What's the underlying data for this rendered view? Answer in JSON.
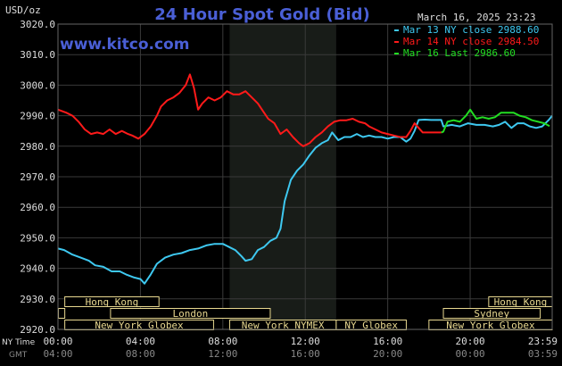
{
  "chart_data": {
    "type": "line",
    "title": "24 Hour Spot Gold (Bid)",
    "watermark": "www.kitco.com",
    "timestamp": "March 16, 2025 23:23",
    "units": "USD/oz",
    "ylim": [
      2920,
      3020
    ],
    "y_ticks": [
      "3020.0",
      "3010.0",
      "3000.0",
      "2990.0",
      "2980.0",
      "2970.0",
      "2960.0",
      "2950.0",
      "2940.0",
      "2930.0",
      "2920.0"
    ],
    "x_hours": [
      0,
      23.98
    ],
    "x_ticks": [
      {
        "h": 0,
        "ny": "00:00",
        "gmt": "04:00"
      },
      {
        "h": 4,
        "ny": "04:00",
        "gmt": "08:00"
      },
      {
        "h": 8,
        "ny": "08:00",
        "gmt": "12:00"
      },
      {
        "h": 12,
        "ny": "12:00",
        "gmt": "16:00"
      },
      {
        "h": 16,
        "ny": "16:00",
        "gmt": "20:00"
      },
      {
        "h": 20,
        "ny": "20:00",
        "gmt": "00:00"
      },
      {
        "h": 23.98,
        "ny": "23:59",
        "gmt": "03:59"
      }
    ],
    "x_row_labels": {
      "ny": "NY Time",
      "gmt": "GMT"
    },
    "shaded_session": [
      8.33,
      13.5
    ],
    "legend": [
      {
        "label": "Mar 13 NY close 2988.60",
        "color": "#3ec8f0"
      },
      {
        "label": "Mar 14 NY close 2984.50",
        "color": "#ff1a1a"
      },
      {
        "label": "Mar 16 Last 2986.60",
        "color": "#22dd22"
      }
    ],
    "series": [
      {
        "color": "#3ec8f0",
        "points": [
          [
            0,
            2946.5
          ],
          [
            0.3,
            2946
          ],
          [
            0.7,
            2944.5
          ],
          [
            1.1,
            2943.5
          ],
          [
            1.5,
            2942.5
          ],
          [
            1.8,
            2941
          ],
          [
            2.2,
            2940.5
          ],
          [
            2.6,
            2939
          ],
          [
            3.0,
            2939
          ],
          [
            3.3,
            2938
          ],
          [
            3.7,
            2937
          ],
          [
            4.0,
            2936.5
          ],
          [
            4.2,
            2935
          ],
          [
            4.5,
            2938
          ],
          [
            4.8,
            2941.5
          ],
          [
            5.2,
            2943.5
          ],
          [
            5.6,
            2944.5
          ],
          [
            6.0,
            2945
          ],
          [
            6.4,
            2946
          ],
          [
            6.8,
            2946.5
          ],
          [
            7.2,
            2947.5
          ],
          [
            7.6,
            2948
          ],
          [
            8.0,
            2948
          ],
          [
            8.3,
            2947
          ],
          [
            8.6,
            2946
          ],
          [
            8.9,
            2944
          ],
          [
            9.1,
            2942.5
          ],
          [
            9.4,
            2943
          ],
          [
            9.7,
            2946
          ],
          [
            10.0,
            2947
          ],
          [
            10.3,
            2949
          ],
          [
            10.6,
            2950
          ],
          [
            10.8,
            2953
          ],
          [
            11.0,
            2962
          ],
          [
            11.3,
            2969
          ],
          [
            11.6,
            2972
          ],
          [
            11.9,
            2974
          ],
          [
            12.2,
            2977
          ],
          [
            12.5,
            2979.5
          ],
          [
            12.8,
            2981
          ],
          [
            13.1,
            2982
          ],
          [
            13.3,
            2984.5
          ],
          [
            13.6,
            2982
          ],
          [
            13.9,
            2983
          ],
          [
            14.2,
            2983
          ],
          [
            14.5,
            2984
          ],
          [
            14.8,
            2983
          ],
          [
            15.1,
            2983.5
          ],
          [
            15.4,
            2983
          ],
          [
            15.7,
            2983
          ],
          [
            16.0,
            2982.5
          ],
          [
            16.3,
            2983
          ],
          [
            16.6,
            2983
          ],
          [
            16.9,
            2981.5
          ],
          [
            17.1,
            2982.5
          ],
          [
            17.3,
            2985
          ],
          [
            17.5,
            2988.6
          ],
          [
            17.8,
            2988.7
          ],
          [
            18.1,
            2988.6
          ],
          [
            18.4,
            2988.6
          ],
          [
            18.6,
            2988.6
          ],
          [
            18.7,
            2986.5
          ],
          [
            19.1,
            2987
          ],
          [
            19.5,
            2986.5
          ],
          [
            19.9,
            2987.5
          ],
          [
            20.3,
            2987
          ],
          [
            20.7,
            2987
          ],
          [
            21.1,
            2986.5
          ],
          [
            21.4,
            2987
          ],
          [
            21.7,
            2988
          ],
          [
            22.0,
            2986
          ],
          [
            22.3,
            2987.5
          ],
          [
            22.6,
            2987.5
          ],
          [
            22.9,
            2986.5
          ],
          [
            23.2,
            2986
          ],
          [
            23.5,
            2986.5
          ],
          [
            23.8,
            2988.5
          ],
          [
            23.98,
            2990
          ]
        ]
      },
      {
        "color": "#ff1a1a",
        "points": [
          [
            0,
            2992
          ],
          [
            0.4,
            2991
          ],
          [
            0.7,
            2990
          ],
          [
            1.0,
            2988
          ],
          [
            1.3,
            2985.5
          ],
          [
            1.6,
            2984
          ],
          [
            1.9,
            2984.5
          ],
          [
            2.2,
            2984
          ],
          [
            2.5,
            2985.5
          ],
          [
            2.8,
            2984
          ],
          [
            3.1,
            2985
          ],
          [
            3.4,
            2984
          ],
          [
            3.6,
            2983.5
          ],
          [
            3.9,
            2982.5
          ],
          [
            4.2,
            2984
          ],
          [
            4.5,
            2986.5
          ],
          [
            4.8,
            2990
          ],
          [
            5.0,
            2993
          ],
          [
            5.3,
            2995
          ],
          [
            5.6,
            2996
          ],
          [
            5.9,
            2997.5
          ],
          [
            6.2,
            3000
          ],
          [
            6.4,
            3003.5
          ],
          [
            6.6,
            2999
          ],
          [
            6.8,
            2992
          ],
          [
            7.0,
            2994
          ],
          [
            7.3,
            2996
          ],
          [
            7.6,
            2995
          ],
          [
            7.9,
            2996
          ],
          [
            8.2,
            2998
          ],
          [
            8.5,
            2997
          ],
          [
            8.8,
            2997
          ],
          [
            9.1,
            2998
          ],
          [
            9.4,
            2996
          ],
          [
            9.7,
            2994
          ],
          [
            9.9,
            2992
          ],
          [
            10.2,
            2989
          ],
          [
            10.5,
            2987.5
          ],
          [
            10.8,
            2984
          ],
          [
            11.1,
            2985.5
          ],
          [
            11.4,
            2983
          ],
          [
            11.7,
            2981
          ],
          [
            11.9,
            2980
          ],
          [
            12.2,
            2981
          ],
          [
            12.5,
            2983
          ],
          [
            12.8,
            2984.5
          ],
          [
            13.1,
            2986.5
          ],
          [
            13.4,
            2988
          ],
          [
            13.7,
            2988.5
          ],
          [
            14.0,
            2988.5
          ],
          [
            14.3,
            2989
          ],
          [
            14.6,
            2988
          ],
          [
            14.9,
            2987.5
          ],
          [
            15.1,
            2986.5
          ],
          [
            15.4,
            2985.5
          ],
          [
            15.7,
            2984.5
          ],
          [
            16.0,
            2984
          ],
          [
            16.3,
            2983.5
          ],
          [
            16.6,
            2983
          ],
          [
            16.9,
            2983
          ],
          [
            17.1,
            2985
          ],
          [
            17.3,
            2987.5
          ],
          [
            17.5,
            2986
          ],
          [
            17.7,
            2984.5
          ],
          [
            18.0,
            2984.5
          ],
          [
            18.3,
            2984.5
          ],
          [
            18.6,
            2984.5
          ]
        ]
      },
      {
        "color": "#22dd22",
        "points": [
          [
            18.6,
            2984.5
          ],
          [
            18.7,
            2984.8
          ],
          [
            18.9,
            2988
          ],
          [
            19.2,
            2988.5
          ],
          [
            19.5,
            2988
          ],
          [
            19.8,
            2990
          ],
          [
            20.0,
            2992
          ],
          [
            20.3,
            2989
          ],
          [
            20.6,
            2989.5
          ],
          [
            20.9,
            2989
          ],
          [
            21.2,
            2989.5
          ],
          [
            21.5,
            2991
          ],
          [
            21.8,
            2991
          ],
          [
            22.1,
            2991
          ],
          [
            22.4,
            2990
          ],
          [
            22.7,
            2989.5
          ],
          [
            23.0,
            2988.5
          ],
          [
            23.3,
            2988
          ],
          [
            23.6,
            2987.5
          ],
          [
            23.85,
            2986.6
          ]
        ]
      }
    ],
    "sessions": [
      {
        "label": "Hong Kong",
        "start": 0.33,
        "end": 4.9,
        "row": 0
      },
      {
        "label": "London",
        "start": 2.55,
        "end": 10.3,
        "row": 1
      },
      {
        "label": "New York Globex",
        "start": 0.33,
        "end": 7.55,
        "row": 2
      },
      {
        "label": "New York NYMEX",
        "start": 8.33,
        "end": 13.5,
        "row": 2
      },
      {
        "label": "NY Globex",
        "start": 13.5,
        "end": 16.9,
        "row": 2
      },
      {
        "label": "Hong Kong",
        "start": 20.9,
        "end": 23.98,
        "row": 0
      },
      {
        "label": "Sydney",
        "start": 18.7,
        "end": 23.4,
        "row": 1
      },
      {
        "label": "New York Globex",
        "start": 18.0,
        "end": 23.98,
        "row": 2
      }
    ],
    "left_session_stub": {
      "start": 0.02,
      "end": 0.33
    }
  }
}
